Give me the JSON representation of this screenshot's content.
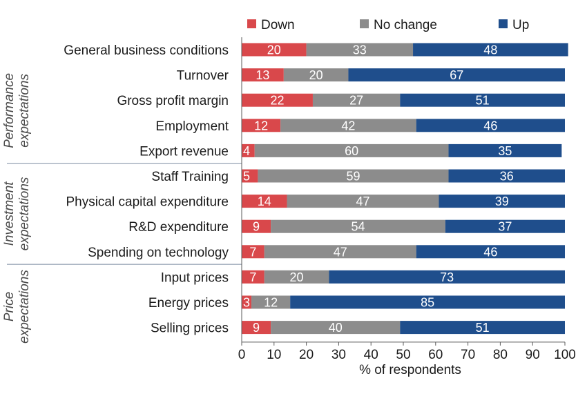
{
  "chart_data": {
    "type": "bar",
    "orientation": "horizontal",
    "stacked": true,
    "categories": [
      "General business conditions",
      "Turnover",
      "Gross profit margin",
      "Employment",
      "Export revenue",
      "Staff Training",
      "Physical capital expenditure",
      "R&D expenditure",
      "Spending on technology",
      "Input prices",
      "Energy prices",
      "Selling prices"
    ],
    "groups": [
      {
        "label_lines": [
          "Performance",
          "expectations"
        ],
        "categories": [
          0,
          1,
          2,
          3,
          4
        ]
      },
      {
        "label_lines": [
          "Investment",
          "expectations"
        ],
        "categories": [
          5,
          6,
          7,
          8
        ]
      },
      {
        "label_lines": [
          "Price",
          "expectations"
        ],
        "categories": [
          9,
          10,
          11
        ]
      }
    ],
    "series": [
      {
        "name": "Down",
        "color": "#d9484b",
        "values": [
          20,
          13,
          22,
          12,
          4,
          5,
          14,
          9,
          7,
          7,
          3,
          9
        ]
      },
      {
        "name": "No change",
        "color": "#8c8c8c",
        "values": [
          33,
          20,
          27,
          42,
          60,
          59,
          47,
          54,
          47,
          20,
          12,
          40
        ]
      },
      {
        "name": "Up",
        "color": "#1f4e8c",
        "values": [
          48,
          67,
          51,
          46,
          35,
          36,
          39,
          37,
          46,
          73,
          85,
          51
        ]
      }
    ],
    "xlabel": "% of respondents",
    "ylabel": "",
    "xlim": [
      0,
      100
    ],
    "xticks": [
      0,
      10,
      20,
      30,
      40,
      50,
      60,
      70,
      80,
      90,
      100
    ],
    "legend_position": "top",
    "grid": false
  }
}
